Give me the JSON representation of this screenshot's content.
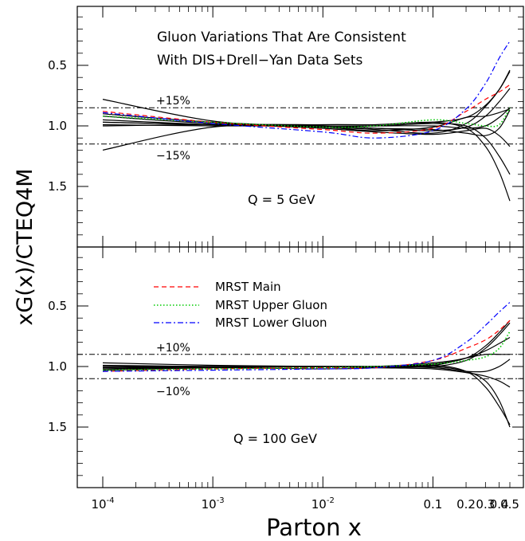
{
  "chart_data": [
    {
      "type": "line",
      "title": "Gluon Variations That Are Consistent",
      "subtitle": "With DIS+Drell−Yan Data Sets",
      "annotation": "Q = 5 GeV",
      "band_labels": {
        "upper": "+15%",
        "lower": "−15%"
      },
      "band": [
        0.85,
        1.15
      ],
      "ylim": [
        0.0,
        2.0
      ],
      "xscale": "log",
      "xlim": [
        0.0001,
        0.55
      ],
      "yticks": [
        0.5,
        1.0,
        1.5
      ],
      "ytick_labels": [
        "0.5",
        "1.0",
        "1.5"
      ],
      "x": [
        0.0001,
        0.001,
        0.01,
        0.03,
        0.1,
        0.2,
        0.3,
        0.4,
        0.5
      ],
      "series": [
        {
          "name": "",
          "style": "solid",
          "color": "#000000",
          "values": [
            1.2,
            1.01,
            0.99,
            0.99,
            0.97,
            1.02,
            1.17,
            1.38,
            1.62
          ]
        },
        {
          "name": "",
          "style": "solid",
          "color": "#000000",
          "values": [
            1.0,
            0.99,
            1.0,
            1.0,
            0.98,
            1.0,
            1.1,
            1.25,
            1.4
          ]
        },
        {
          "name": "",
          "style": "solid",
          "color": "#000000",
          "values": [
            0.78,
            0.96,
            1.02,
            1.05,
            1.07,
            1.04,
            1.02,
            1.08,
            1.17
          ]
        },
        {
          "name": "",
          "style": "solid",
          "color": "#000000",
          "values": [
            0.92,
            0.98,
            1.0,
            1.02,
            1.03,
            1.06,
            1.08,
            1.02,
            0.87
          ]
        },
        {
          "name": "",
          "style": "solid",
          "color": "#000000",
          "values": [
            0.97,
            0.99,
            1.0,
            1.0,
            1.0,
            1.02,
            1.0,
            0.93,
            0.85
          ]
        },
        {
          "name": "",
          "style": "solid",
          "color": "#000000",
          "values": [
            0.99,
            1.0,
            1.0,
            1.02,
            1.04,
            1.01,
            0.92,
            0.8,
            0.69
          ]
        },
        {
          "name": "",
          "style": "solid",
          "color": "#000000",
          "values": [
            0.95,
            0.99,
            1.01,
            1.03,
            1.06,
            0.98,
            0.84,
            0.7,
            0.54
          ]
        },
        {
          "name": "",
          "style": "solid",
          "color": "#000000",
          "values": [
            0.9,
            0.97,
            1.01,
            1.04,
            1.01,
            0.93,
            0.92,
            0.89,
            0.86
          ]
        },
        {
          "name": "",
          "style": "solid",
          "color": "#000000",
          "values": [
            0.97,
            0.99,
            1.0,
            1.0,
            0.97,
            0.93,
            0.83,
            0.7,
            0.55
          ]
        },
        {
          "name": "MRST Main",
          "style": "dashed",
          "color": "#ff0000",
          "values": [
            0.88,
            0.97,
            1.03,
            1.06,
            1.02,
            0.88,
            0.78,
            0.72,
            0.66
          ]
        },
        {
          "name": "MRST Upper Gluon",
          "style": "dotted",
          "color": "#00cc00",
          "values": [
            0.92,
            0.97,
            1.01,
            1.0,
            0.95,
            0.98,
            1.0,
            0.99,
            0.85
          ]
        },
        {
          "name": "MRST Lower Gluon",
          "style": "dashdot",
          "color": "#0000ff",
          "values": [
            0.89,
            0.98,
            1.05,
            1.1,
            1.04,
            0.86,
            0.65,
            0.44,
            0.3
          ]
        }
      ]
    },
    {
      "type": "line",
      "annotation": "Q = 100 GeV",
      "band_labels": {
        "upper": "+10%",
        "lower": "−10%"
      },
      "band": [
        0.9,
        1.1
      ],
      "ylim": [
        0.0,
        2.0
      ],
      "xscale": "log",
      "xlim": [
        0.0001,
        0.55
      ],
      "xlabel": "Parton x",
      "ylabel": "xG(x)/CTEQ4M",
      "yticks": [
        0.5,
        1.0,
        1.5
      ],
      "ytick_labels": [
        "0.5",
        "1.0",
        "1.5"
      ],
      "xticks": [
        0.0001,
        0.001,
        0.01,
        0.1,
        0.2,
        0.3,
        0.4,
        0.5
      ],
      "xtick_labels": [
        {
          "base": "10",
          "exp": "-4"
        },
        {
          "base": "10",
          "exp": "-3"
        },
        {
          "base": "10",
          "exp": "-2"
        },
        {
          "base": "0.1",
          "exp": ""
        },
        {
          "base": "0.2",
          "exp": ""
        },
        {
          "base": "0.3",
          "exp": ""
        },
        {
          "base": "0.4",
          "exp": ""
        },
        {
          "base": "0.5",
          "exp": ""
        }
      ],
      "legend_position": "left",
      "x": [
        0.0001,
        0.001,
        0.01,
        0.03,
        0.1,
        0.2,
        0.3,
        0.4,
        0.5
      ],
      "series": [
        {
          "name": "",
          "style": "solid",
          "color": "#000000",
          "values": [
            1.02,
            1.0,
            1.0,
            1.0,
            0.99,
            1.04,
            1.17,
            1.33,
            1.48
          ]
        },
        {
          "name": "",
          "style": "solid",
          "color": "#000000",
          "values": [
            1.03,
            1.01,
            1.0,
            1.0,
            1.0,
            1.04,
            1.12,
            1.28,
            1.5
          ]
        },
        {
          "name": "",
          "style": "solid",
          "color": "#000000",
          "values": [
            0.97,
            0.99,
            1.0,
            1.01,
            1.02,
            1.05,
            1.08,
            1.12,
            1.17
          ]
        },
        {
          "name": "",
          "style": "solid",
          "color": "#000000",
          "values": [
            1.0,
            1.0,
            1.0,
            1.0,
            1.01,
            1.04,
            1.04,
            1.0,
            0.94
          ]
        },
        {
          "name": "",
          "style": "solid",
          "color": "#000000",
          "values": [
            1.0,
            1.0,
            1.0,
            1.0,
            0.97,
            0.93,
            0.87,
            0.81,
            0.76
          ]
        },
        {
          "name": "",
          "style": "solid",
          "color": "#000000",
          "values": [
            1.01,
            1.0,
            1.0,
            1.01,
            1.0,
            0.95,
            0.85,
            0.74,
            0.64
          ]
        },
        {
          "name": "",
          "style": "solid",
          "color": "#000000",
          "values": [
            1.02,
            1.01,
            1.02,
            1.01,
            0.98,
            0.93,
            0.83,
            0.72,
            0.62
          ]
        },
        {
          "name": "",
          "style": "solid",
          "color": "#000000",
          "values": [
            0.99,
            1.0,
            1.0,
            1.0,
            0.99,
            0.93,
            0.9,
            0.9,
            0.9
          ]
        },
        {
          "name": "MRST Main",
          "style": "dashed",
          "color": "#ff0000",
          "values": [
            1.04,
            1.02,
            1.01,
            1.01,
            0.95,
            0.85,
            0.78,
            0.7,
            0.62
          ]
        },
        {
          "name": "MRST Upper Gluon",
          "style": "dotted",
          "color": "#00cc00",
          "values": [
            1.03,
            1.02,
            1.01,
            1.0,
            0.98,
            0.95,
            0.92,
            0.85,
            0.71
          ]
        },
        {
          "name": "MRST Lower Gluon",
          "style": "dashdot",
          "color": "#0000ff",
          "values": [
            1.04,
            1.03,
            1.02,
            1.01,
            0.95,
            0.8,
            0.66,
            0.55,
            0.47
          ]
        }
      ],
      "legend": [
        {
          "label": "MRST Main",
          "style": "dashed",
          "color": "#ff0000"
        },
        {
          "label": "MRST Upper Gluon",
          "style": "dotted",
          "color": "#00cc00"
        },
        {
          "label": "MRST Lower Gluon",
          "style": "dashdot",
          "color": "#0000ff"
        }
      ]
    }
  ]
}
